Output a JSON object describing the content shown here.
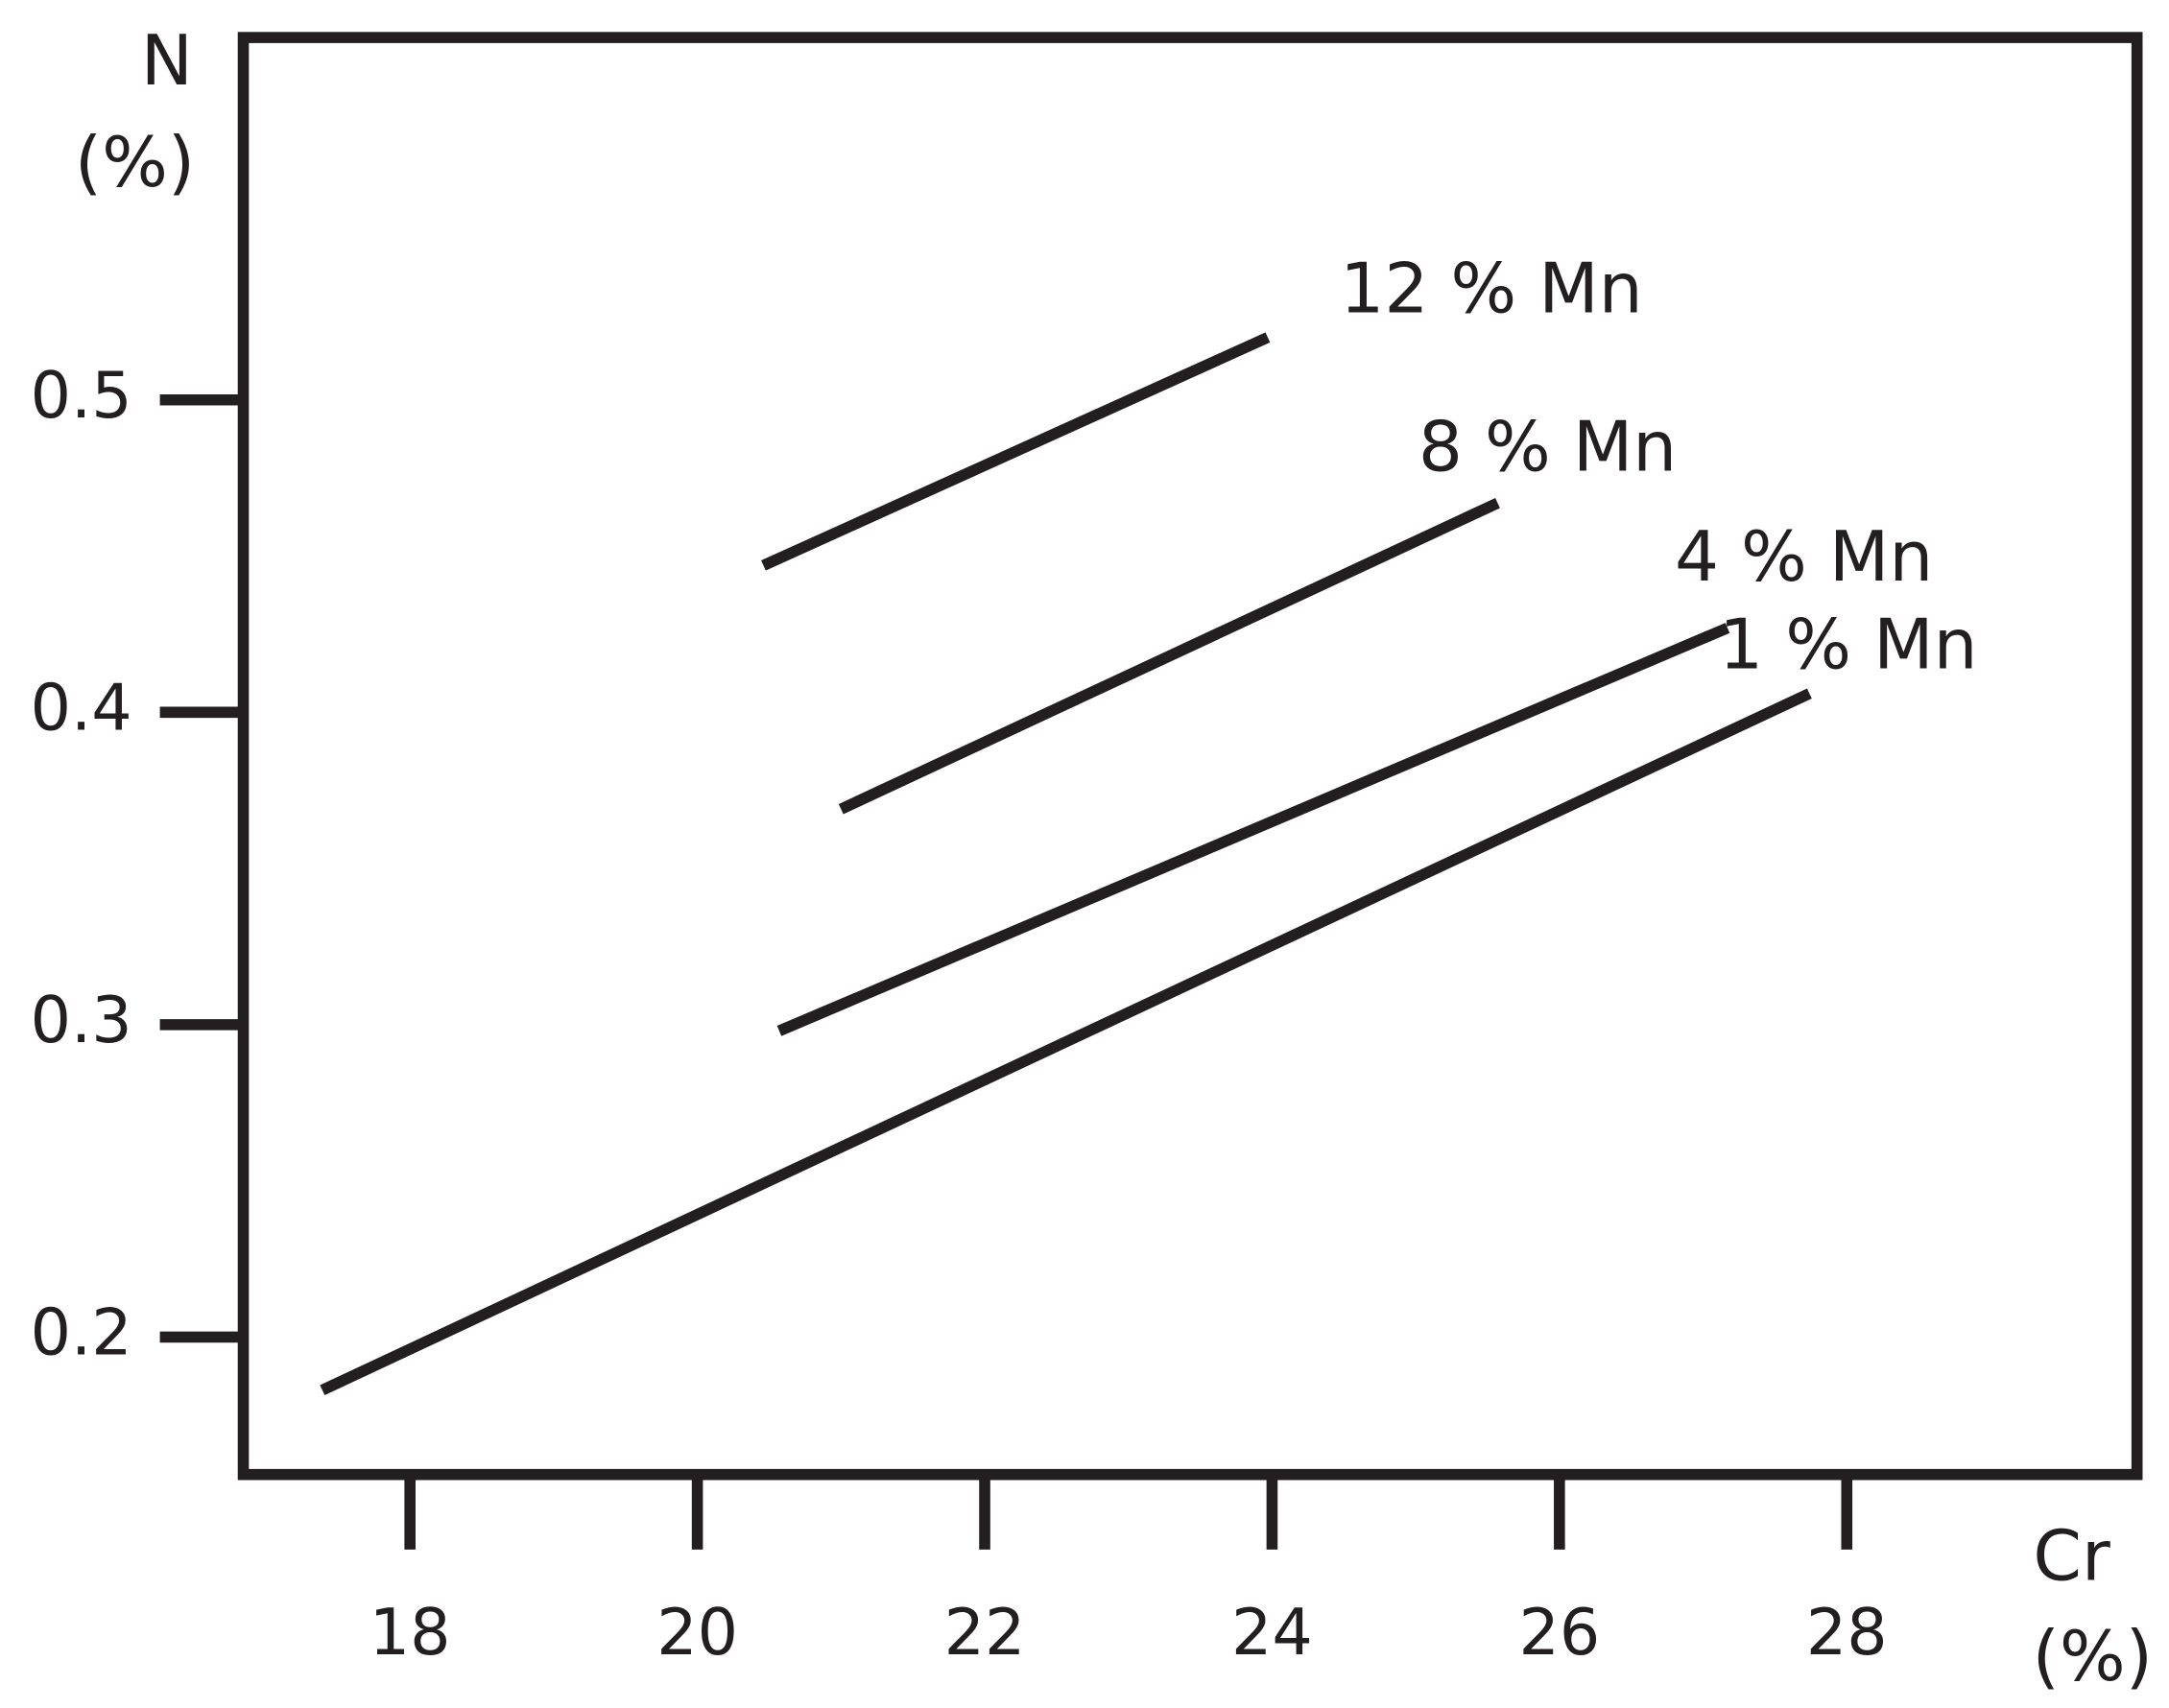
{
  "chart_data": {
    "type": "line",
    "x_label": [
      "Cr",
      "(%)"
    ],
    "y_label": [
      "N",
      "(%)"
    ],
    "xlim": [
      16.84,
      30.02
    ],
    "xticks": [
      18,
      20,
      22,
      24,
      26,
      28
    ],
    "ylim": [
      0.156,
      0.616
    ],
    "yticks": [
      0.2,
      0.3,
      0.4,
      0.5
    ],
    "series": [
      {
        "name": "1 % Mn",
        "color": "#231f20",
        "x": [
          17.39,
          27.74
        ],
        "values": [
          0.183,
          0.406
        ]
      },
      {
        "name": "4 % Mn",
        "color": "#231f20",
        "x": [
          20.57,
          27.17
        ],
        "values": [
          0.298,
          0.427
        ]
      },
      {
        "name": "8 % Mn",
        "color": "#231f20",
        "x": [
          21.0,
          25.57
        ],
        "values": [
          0.369,
          0.467
        ]
      },
      {
        "name": "12 % Mn",
        "color": "#231f20",
        "x": [
          20.46,
          23.97
        ],
        "values": [
          0.447,
          0.52
        ]
      }
    ]
  }
}
